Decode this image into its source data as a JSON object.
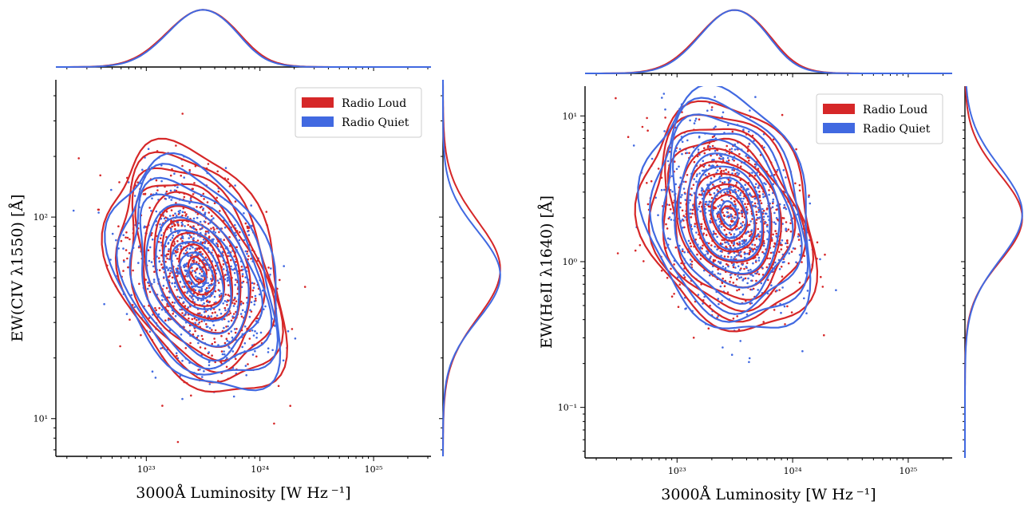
{
  "colors": {
    "radio_loud": "#d62728",
    "radio_quiet": "#4169e1"
  },
  "chart_data": [
    {
      "type": "scatter",
      "xlabel": "3000Å Luminosity [W Hz ⁻¹]",
      "ylabel": "EW(CIV λ1550) [Å]",
      "xscale": "log",
      "yscale": "log",
      "xlim": [
        1.6e+22,
        3.2e+25
      ],
      "ylim": [
        6.5,
        480
      ],
      "xticks": [
        {
          "value": 1e+23,
          "label": "10²³"
        },
        {
          "value": 1e+24,
          "label": "10²⁴"
        },
        {
          "value": 1e+25,
          "label": "10²⁵"
        }
      ],
      "yticks": [
        {
          "value": 10,
          "label": "10¹"
        },
        {
          "value": 100,
          "label": "10²"
        }
      ],
      "legend": {
        "position": "top-right",
        "entries": [
          "Radio Loud",
          "Radio Quiet"
        ]
      },
      "series": [
        {
          "name": "Radio Loud",
          "color": "#d62728",
          "center_logx": 23.45,
          "center_logy": 1.74,
          "spread_logx": 0.3,
          "spread_logy": 0.24,
          "corr": -0.35
        },
        {
          "name": "Radio Quiet",
          "color": "#4169e1",
          "center_logx": 23.45,
          "center_logy": 1.71,
          "spread_logx": 0.29,
          "spread_logy": 0.22,
          "corr": -0.35
        }
      ],
      "marginal_x": "kde",
      "marginal_y": "kde"
    },
    {
      "type": "scatter",
      "xlabel": "3000Å Luminosity [W Hz ⁻¹]",
      "ylabel": "EW(HeII λ1640) [Å]",
      "xscale": "log",
      "yscale": "log",
      "xlim": [
        1.6e+22,
        2.4e+25
      ],
      "ylim": [
        0.045,
        16
      ],
      "xticks": [
        {
          "value": 1e+23,
          "label": "10²³"
        },
        {
          "value": 1e+24,
          "label": "10²⁴"
        },
        {
          "value": 1e+25,
          "label": "10²⁵"
        }
      ],
      "yticks": [
        {
          "value": 0.1,
          "label": "10⁻¹"
        },
        {
          "value": 1,
          "label": "10⁰"
        },
        {
          "value": 10,
          "label": "10¹"
        }
      ],
      "legend": {
        "position": "top-right",
        "entries": [
          "Radio Loud",
          "Radio Quiet"
        ]
      },
      "series": [
        {
          "name": "Radio Loud",
          "color": "#d62728",
          "center_logx": 23.45,
          "center_logy": 0.3,
          "spread_logx": 0.29,
          "spread_logy": 0.3,
          "corr": -0.2
        },
        {
          "name": "Radio Quiet",
          "color": "#4169e1",
          "center_logx": 23.45,
          "center_logy": 0.33,
          "spread_logx": 0.28,
          "spread_logy": 0.32,
          "corr": -0.2
        }
      ],
      "marginal_x": "kde",
      "marginal_y": "kde"
    }
  ]
}
